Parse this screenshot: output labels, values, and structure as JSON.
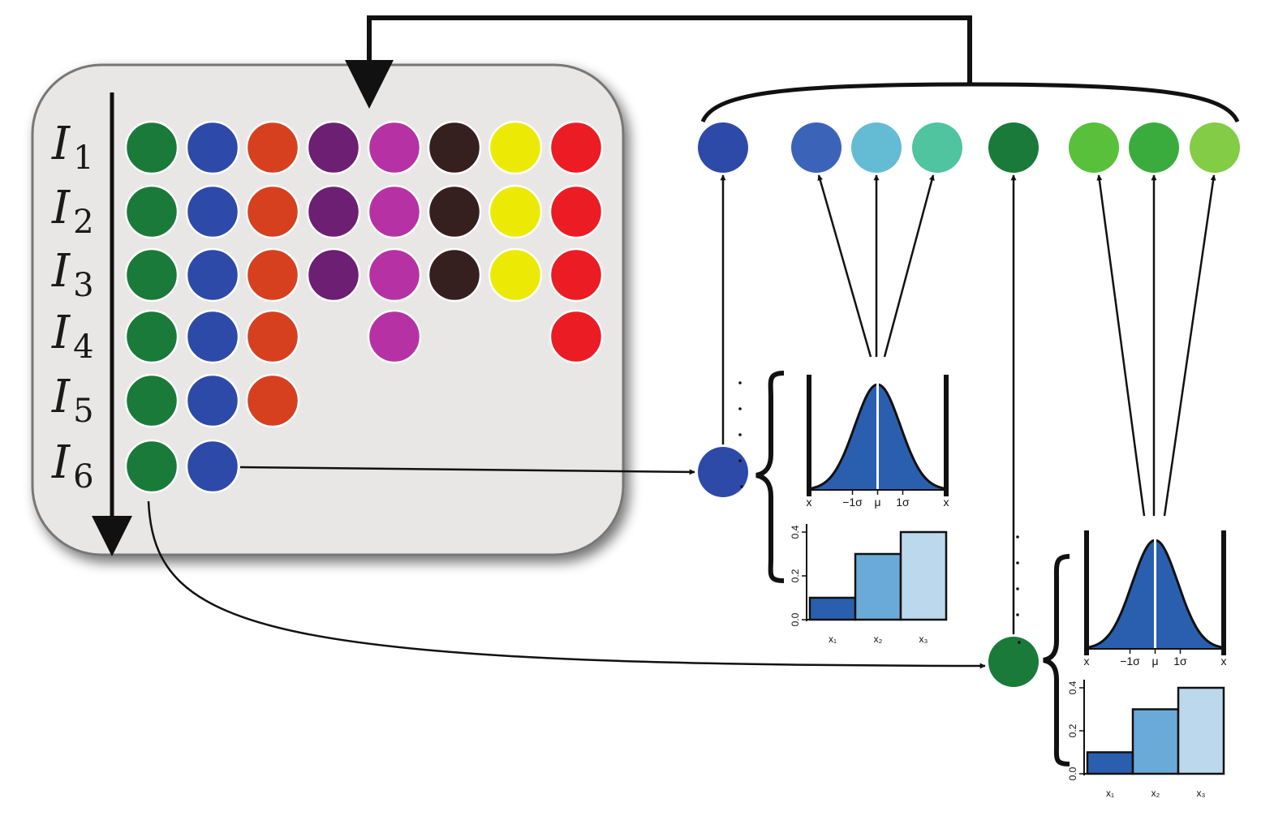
{
  "rows": [
    {
      "label": "I",
      "sub": "1"
    },
    {
      "label": "I",
      "sub": "2"
    },
    {
      "label": "I",
      "sub": "3"
    },
    {
      "label": "I",
      "sub": "4"
    },
    {
      "label": "I",
      "sub": "5"
    },
    {
      "label": "I",
      "sub": "6"
    }
  ],
  "palette": [
    "#1a7a3a",
    "#2e4aa8",
    "#d6401f",
    "#6c1f73",
    "#b632a4",
    "#36201f",
    "#ecea05",
    "#ec1c24"
  ],
  "present": [
    [
      1,
      1,
      1,
      1,
      1,
      1,
      1,
      1
    ],
    [
      1,
      1,
      1,
      1,
      1,
      1,
      1,
      1
    ],
    [
      1,
      1,
      1,
      1,
      1,
      1,
      1,
      1
    ],
    [
      1,
      1,
      1,
      0,
      1,
      0,
      0,
      1
    ],
    [
      1,
      1,
      1,
      0,
      0,
      0,
      0,
      0
    ],
    [
      1,
      1,
      0,
      0,
      0,
      0,
      0,
      0
    ]
  ],
  "top_nodes": [
    "#2e4aa8",
    "#3b64b8",
    "#63bcd4",
    "#4fc49e",
    "#1a7a3a",
    "#58c03a",
    "#3aac3e",
    "#82cc46"
  ],
  "blue_branch": {
    "node_color": "#2e4aa8",
    "normal_ticks": [
      "x",
      "−1σ",
      "μ",
      "1σ",
      "x"
    ],
    "bar_y_ticks": [
      "0.0",
      "0.2",
      "0.4"
    ],
    "bar_categories": [
      "x₁",
      "x₂",
      "x₃"
    ],
    "bar_values": [
      0.1,
      0.3,
      0.4
    ]
  },
  "green_branch": {
    "node_color": "#1a7a3a",
    "normal_ticks": [
      "x",
      "−1σ",
      "μ",
      "1σ",
      "x"
    ],
    "bar_y_ticks": [
      "0.0",
      "0.2",
      "0.4"
    ],
    "bar_categories": [
      "x₁",
      "x₂",
      "x₃"
    ],
    "bar_values": [
      0.1,
      0.3,
      0.4
    ]
  },
  "bar_colors": [
    "#2a5fb0",
    "#6aaad9",
    "#bcd8ec"
  ],
  "curve_fill": "#2a5fb0"
}
